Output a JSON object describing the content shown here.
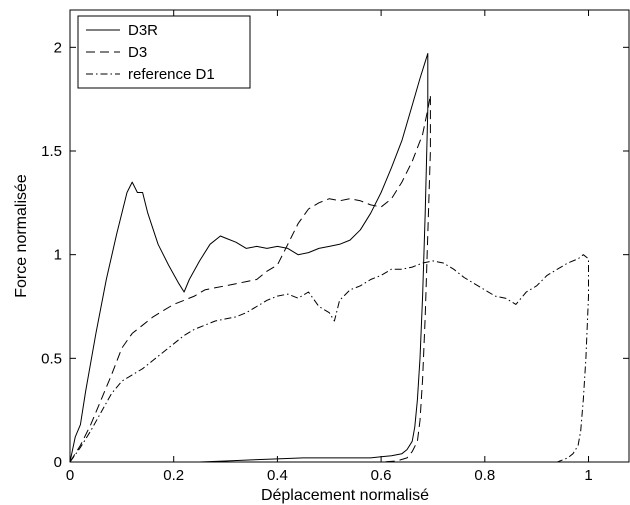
{
  "chart_data": {
    "type": "line",
    "title": "",
    "xlabel": "Déplacement normalisé",
    "ylabel": "Force normalisée",
    "xlim": [
      0,
      1.08
    ],
    "ylim": [
      0,
      2.18
    ],
    "grid": false,
    "legend_position": "top-left",
    "x_ticks": [
      {
        "value": 0,
        "label": "0"
      },
      {
        "value": 0.2,
        "label": "0.2"
      },
      {
        "value": 0.4,
        "label": "0.4"
      },
      {
        "value": 0.6,
        "label": "0.6"
      },
      {
        "value": 0.8,
        "label": "0.8"
      },
      {
        "value": 1,
        "label": "1"
      }
    ],
    "y_ticks": [
      {
        "value": 0,
        "label": "0"
      },
      {
        "value": 0.5,
        "label": "0.5"
      },
      {
        "value": 1,
        "label": "1"
      },
      {
        "value": 1.5,
        "label": "1.5"
      },
      {
        "value": 2,
        "label": "2"
      }
    ],
    "series": [
      {
        "name": "D3R",
        "style": "solid",
        "color": "#000000",
        "x": [
          0,
          0.01,
          0.02,
          0.03,
          0.05,
          0.07,
          0.09,
          0.11,
          0.12,
          0.13,
          0.14,
          0.15,
          0.17,
          0.19,
          0.21,
          0.22,
          0.23,
          0.25,
          0.27,
          0.29,
          0.3,
          0.32,
          0.34,
          0.36,
          0.38,
          0.4,
          0.42,
          0.44,
          0.46,
          0.48,
          0.5,
          0.52,
          0.54,
          0.56,
          0.58,
          0.6,
          0.62,
          0.64,
          0.66,
          0.675,
          0.685,
          0.69,
          0.69,
          0.685,
          0.68,
          0.675,
          0.67,
          0.665,
          0.66,
          0.65,
          0.64,
          0.62,
          0.6,
          0.58,
          0.55,
          0.5,
          0.45,
          0.4,
          0.35,
          0.3,
          0.25
        ],
        "y": [
          0,
          0.12,
          0.18,
          0.34,
          0.62,
          0.88,
          1.1,
          1.3,
          1.35,
          1.3,
          1.3,
          1.2,
          1.05,
          0.95,
          0.86,
          0.82,
          0.88,
          0.97,
          1.05,
          1.09,
          1.08,
          1.06,
          1.03,
          1.04,
          1.03,
          1.04,
          1.03,
          1.0,
          1.01,
          1.03,
          1.04,
          1.05,
          1.07,
          1.12,
          1.2,
          1.3,
          1.42,
          1.55,
          1.72,
          1.85,
          1.93,
          1.97,
          1.7,
          1.2,
          0.8,
          0.5,
          0.3,
          0.17,
          0.1,
          0.06,
          0.04,
          0.03,
          0.025,
          0.02,
          0.02,
          0.02,
          0.02,
          0.015,
          0.01,
          0.005,
          0.0
        ]
      },
      {
        "name": "D3",
        "style": "dashed",
        "color": "#000000",
        "x": [
          0,
          0.02,
          0.04,
          0.06,
          0.08,
          0.1,
          0.12,
          0.14,
          0.16,
          0.18,
          0.2,
          0.22,
          0.24,
          0.26,
          0.28,
          0.3,
          0.32,
          0.34,
          0.36,
          0.38,
          0.4,
          0.42,
          0.44,
          0.46,
          0.48,
          0.5,
          0.52,
          0.54,
          0.56,
          0.58,
          0.6,
          0.62,
          0.64,
          0.66,
          0.68,
          0.69,
          0.695,
          0.695,
          0.69,
          0.685,
          0.68,
          0.675,
          0.67,
          0.66,
          0.65,
          0.63,
          0.6
        ],
        "y": [
          0,
          0.08,
          0.18,
          0.3,
          0.42,
          0.55,
          0.62,
          0.66,
          0.7,
          0.73,
          0.76,
          0.78,
          0.8,
          0.83,
          0.84,
          0.85,
          0.86,
          0.87,
          0.88,
          0.92,
          0.95,
          1.05,
          1.15,
          1.22,
          1.25,
          1.27,
          1.26,
          1.27,
          1.26,
          1.24,
          1.23,
          1.27,
          1.35,
          1.45,
          1.58,
          1.7,
          1.77,
          1.5,
          1.1,
          0.7,
          0.4,
          0.2,
          0.1,
          0.05,
          0.02,
          0.005,
          0.0
        ]
      },
      {
        "name": "reference D1",
        "style": "dashdot",
        "color": "#000000",
        "x": [
          0,
          0.02,
          0.04,
          0.06,
          0.08,
          0.1,
          0.12,
          0.14,
          0.16,
          0.18,
          0.2,
          0.22,
          0.24,
          0.26,
          0.28,
          0.3,
          0.32,
          0.34,
          0.36,
          0.38,
          0.4,
          0.42,
          0.44,
          0.46,
          0.48,
          0.5,
          0.51,
          0.52,
          0.54,
          0.56,
          0.58,
          0.6,
          0.62,
          0.64,
          0.66,
          0.68,
          0.7,
          0.72,
          0.74,
          0.76,
          0.78,
          0.8,
          0.82,
          0.84,
          0.86,
          0.88,
          0.9,
          0.92,
          0.94,
          0.96,
          0.98,
          0.99,
          1.0,
          1.0,
          0.995,
          0.99,
          0.985,
          0.98,
          0.97,
          0.96,
          0.95,
          0.94
        ],
        "y": [
          0,
          0.07,
          0.15,
          0.24,
          0.33,
          0.39,
          0.42,
          0.45,
          0.49,
          0.53,
          0.57,
          0.61,
          0.64,
          0.66,
          0.68,
          0.69,
          0.7,
          0.72,
          0.75,
          0.78,
          0.8,
          0.81,
          0.79,
          0.82,
          0.75,
          0.72,
          0.68,
          0.78,
          0.83,
          0.85,
          0.88,
          0.9,
          0.93,
          0.93,
          0.94,
          0.96,
          0.97,
          0.96,
          0.93,
          0.89,
          0.86,
          0.83,
          0.8,
          0.79,
          0.76,
          0.82,
          0.85,
          0.9,
          0.93,
          0.96,
          0.98,
          1.0,
          0.98,
          0.8,
          0.5,
          0.3,
          0.15,
          0.08,
          0.04,
          0.02,
          0.01,
          0.0
        ]
      }
    ]
  }
}
